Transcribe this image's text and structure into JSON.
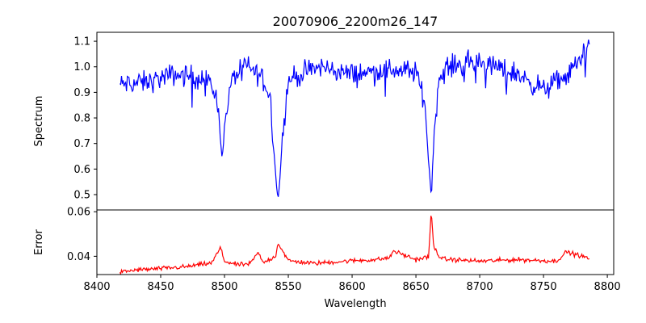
{
  "figure": {
    "title": "20070906_2200m26_147"
  },
  "chart_data": [
    {
      "name": "spectrum-panel",
      "type": "line",
      "title": "20070906_2200m26_147",
      "xlabel": "",
      "ylabel": "Spectrum",
      "xlim": [
        8400,
        8805
      ],
      "ylim": [
        0.44,
        1.135
      ],
      "yticks": [
        0.5,
        0.6,
        0.7,
        0.8,
        0.9,
        1.0,
        1.1
      ],
      "ytick_labels": [
        "0.5",
        "0.6",
        "0.7",
        "0.8",
        "0.9",
        "1.0",
        "1.1"
      ],
      "x_range_data": [
        8418,
        8786
      ],
      "grid": false,
      "series": [
        {
          "color": "#0000ff",
          "continuum": 0.965,
          "noise": 0.048,
          "absorption_lines": [
            {
              "center": 8498.0,
              "min": 0.65
            },
            {
              "center": 8542.0,
              "min": 0.47
            },
            {
              "center": 8662.0,
              "min": 0.49
            }
          ],
          "x": [
            8418,
            8440,
            8460,
            8480,
            8490,
            8495,
            8498,
            8501,
            8506,
            8515,
            8530,
            8536,
            8539,
            8542,
            8545,
            8550,
            8575,
            8600,
            8630,
            8650,
            8657,
            8660,
            8662,
            8664,
            8668,
            8675,
            8700,
            8730,
            8750,
            8770,
            8786
          ],
          "y": [
            0.93,
            0.94,
            0.97,
            0.96,
            0.93,
            0.85,
            0.65,
            0.81,
            0.95,
            1.01,
            0.96,
            0.88,
            0.65,
            0.47,
            0.7,
            0.95,
            1.0,
            0.97,
            0.99,
            0.98,
            0.86,
            0.63,
            0.49,
            0.72,
            0.95,
            1.0,
            1.02,
            0.97,
            0.91,
            0.97,
            1.09
          ]
        }
      ]
    },
    {
      "name": "error-panel",
      "type": "line",
      "title": "",
      "xlabel": "Wavelength",
      "ylabel": "Error",
      "xlim": [
        8400,
        8805
      ],
      "ylim": [
        0.0318,
        0.0608
      ],
      "xticks": [
        8400,
        8450,
        8500,
        8550,
        8600,
        8650,
        8700,
        8750,
        8800
      ],
      "xtick_labels": [
        "8400",
        "8450",
        "8500",
        "8550",
        "8600",
        "8650",
        "8700",
        "8750",
        "8800"
      ],
      "yticks": [
        0.04,
        0.06
      ],
      "ytick_labels": [
        "0.04",
        "0.06"
      ],
      "grid": false,
      "series": [
        {
          "color": "#ff0000",
          "x": [
            8418,
            8430,
            8450,
            8470,
            8490,
            8497,
            8498,
            8500,
            8510,
            8520,
            8527,
            8528,
            8530,
            8540,
            8542,
            8545,
            8550,
            8570,
            8600,
            8620,
            8630,
            8632,
            8650,
            8660,
            8662,
            8664,
            8670,
            8700,
            8730,
            8760,
            8768,
            8786
          ],
          "y": [
            0.0328,
            0.0338,
            0.0345,
            0.0353,
            0.037,
            0.044,
            0.0415,
            0.0378,
            0.0362,
            0.0366,
            0.042,
            0.0395,
            0.037,
            0.04,
            0.046,
            0.043,
            0.038,
            0.0368,
            0.038,
            0.0385,
            0.0395,
            0.0425,
            0.0385,
            0.0398,
            0.06,
            0.044,
            0.0388,
            0.0378,
            0.0385,
            0.0378,
            0.042,
            0.039
          ]
        }
      ]
    }
  ]
}
